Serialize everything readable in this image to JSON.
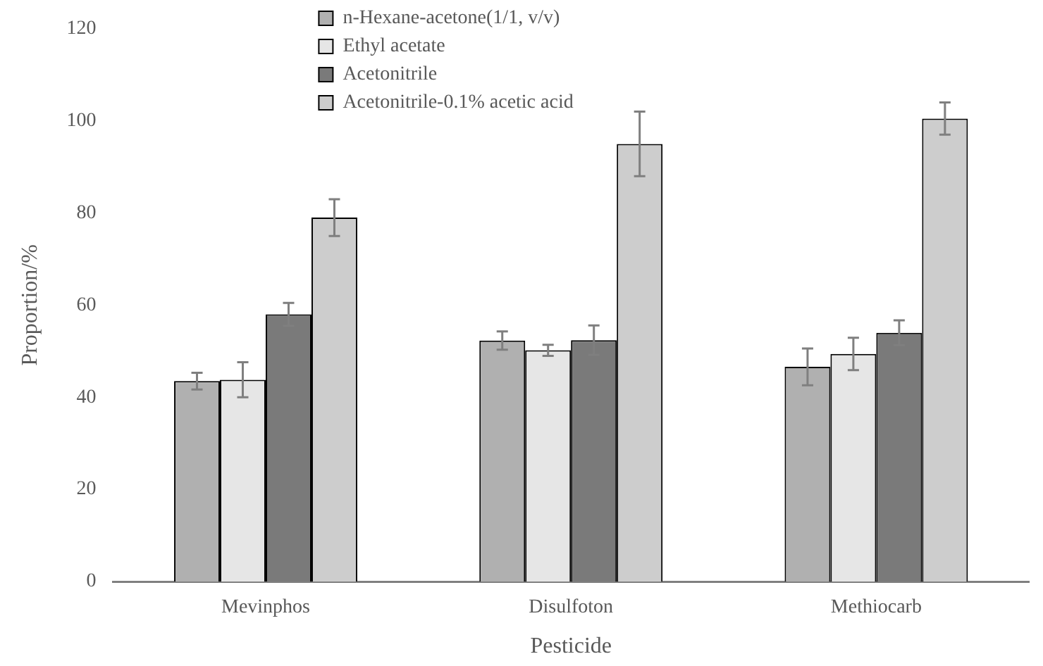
{
  "chart_data": {
    "type": "bar",
    "xlabel": "Pesticide",
    "ylabel": "Proportion/%",
    "categories": [
      "Mevinphos",
      "Disulfoton",
      "Methiocarb"
    ],
    "series": [
      {
        "name": "n-Hexane-acetone(1/1, v/v)",
        "color": "#b0b0b0",
        "values": [
          43.5,
          52.3,
          46.6
        ],
        "errors": [
          1.8,
          2,
          4
        ]
      },
      {
        "name": "Ethyl acetate",
        "color": "#e6e6e6",
        "values": [
          43.8,
          50.2,
          49.4
        ],
        "errors": [
          3.8,
          1.2,
          3.5
        ]
      },
      {
        "name": "Acetonitrile",
        "color": "#7a7a7a",
        "values": [
          58,
          52.4,
          54
        ],
        "errors": [
          2.5,
          3.2,
          2.7
        ]
      },
      {
        "name": "Acetonitrile-0.1% acetic acid",
        "color": "#cdcdcd",
        "values": [
          79,
          95,
          100.5
        ],
        "errors": [
          4,
          7,
          3.5
        ]
      }
    ],
    "ylim": [
      0,
      120
    ],
    "yticks": [
      0,
      20,
      40,
      60,
      80,
      100,
      120
    ],
    "grid": false,
    "legend": "top left"
  }
}
